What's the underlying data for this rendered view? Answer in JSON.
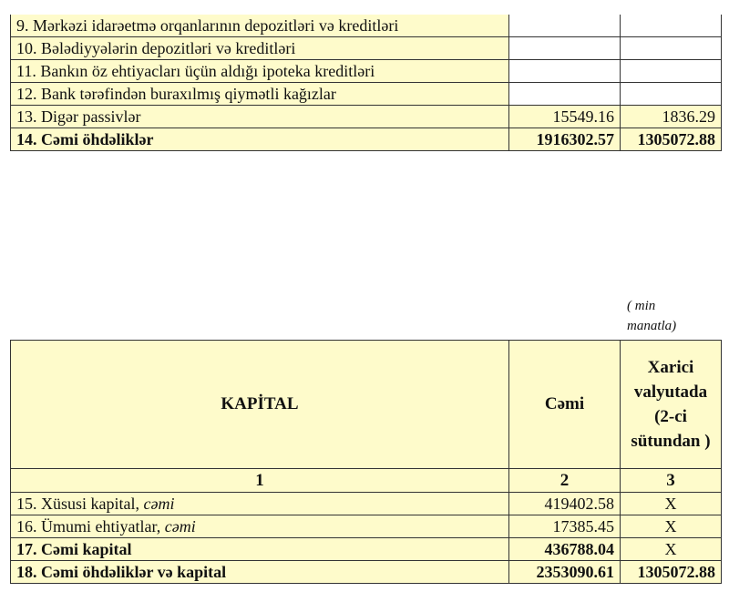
{
  "liabilities_table": {
    "rows": [
      {
        "label": "9. Mərkəzi idarəetmə orqanlarının depozitləri və kreditləri",
        "total": "",
        "foreign": ""
      },
      {
        "label": "10. Bələdiyyələrin depozitləri və kreditləri",
        "total": "",
        "foreign": ""
      },
      {
        "label": "11. Bankın öz ehtiyacları üçün aldığı ipoteka kreditləri",
        "total": "",
        "foreign": ""
      },
      {
        "label": "12. Bank tərəfindən buraxılmış qiymətli kağızlar",
        "total": "",
        "foreign": ""
      },
      {
        "label": "13. Digər passivlər",
        "total": "15549.16",
        "foreign": "1836.29"
      },
      {
        "label": "14. Cəmi öhdəliklər",
        "total": "1916302.57",
        "foreign": "1305072.88"
      }
    ]
  },
  "unit_note": "( min manatla)",
  "capital_table": {
    "headers": [
      "KAPİTAL",
      "Cəmi",
      "Xarici valyutada (2-ci sütundan )"
    ],
    "column_numbers": [
      "1",
      "2",
      "3"
    ],
    "rows": [
      {
        "label": "15. Xüsusi kapital, ",
        "label_italic": "cəmi",
        "total": "419402.58",
        "foreign": "X"
      },
      {
        "label": "16. Ümumi ehtiyatlar, ",
        "label_italic": "cəmi",
        "total": "17385.45",
        "foreign": "X"
      },
      {
        "label": "17. Cəmi kapital",
        "total": "436788.04",
        "foreign": "X"
      },
      {
        "label": "18. Cəmi öhdəliklər və kapital",
        "total": "2353090.61",
        "foreign": "1305072.88"
      }
    ]
  },
  "colors": {
    "cell_fill": "#fefbcb",
    "border": "#333333"
  }
}
